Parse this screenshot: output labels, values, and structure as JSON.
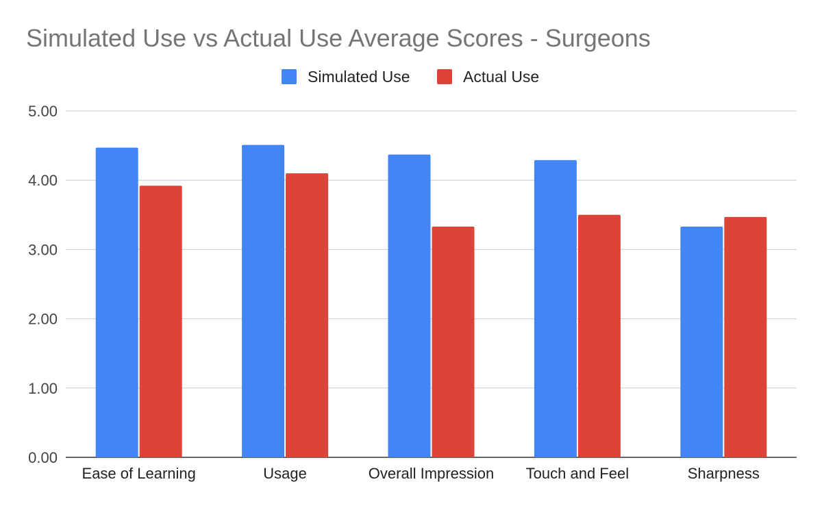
{
  "chart_data": {
    "type": "bar",
    "title": "Simulated Use vs Actual Use Average Scores - Surgeons",
    "xlabel": "",
    "ylabel": "",
    "categories": [
      "Ease of Learning",
      "Usage",
      "Overall Impression",
      "Touch and Feel",
      "Sharpness"
    ],
    "series": [
      {
        "name": "Simulated Use",
        "color": "#4285f4",
        "values": [
          4.47,
          4.51,
          4.37,
          4.29,
          3.33
        ]
      },
      {
        "name": "Actual Use",
        "color": "#db4437",
        "values": [
          3.92,
          4.1,
          3.33,
          3.5,
          3.47
        ]
      }
    ],
    "ylim": [
      0,
      5
    ],
    "y_ticks": [
      "0.00",
      "1.00",
      "2.00",
      "3.00",
      "4.00",
      "5.00"
    ],
    "grid": true,
    "legend_position": "top-center"
  }
}
